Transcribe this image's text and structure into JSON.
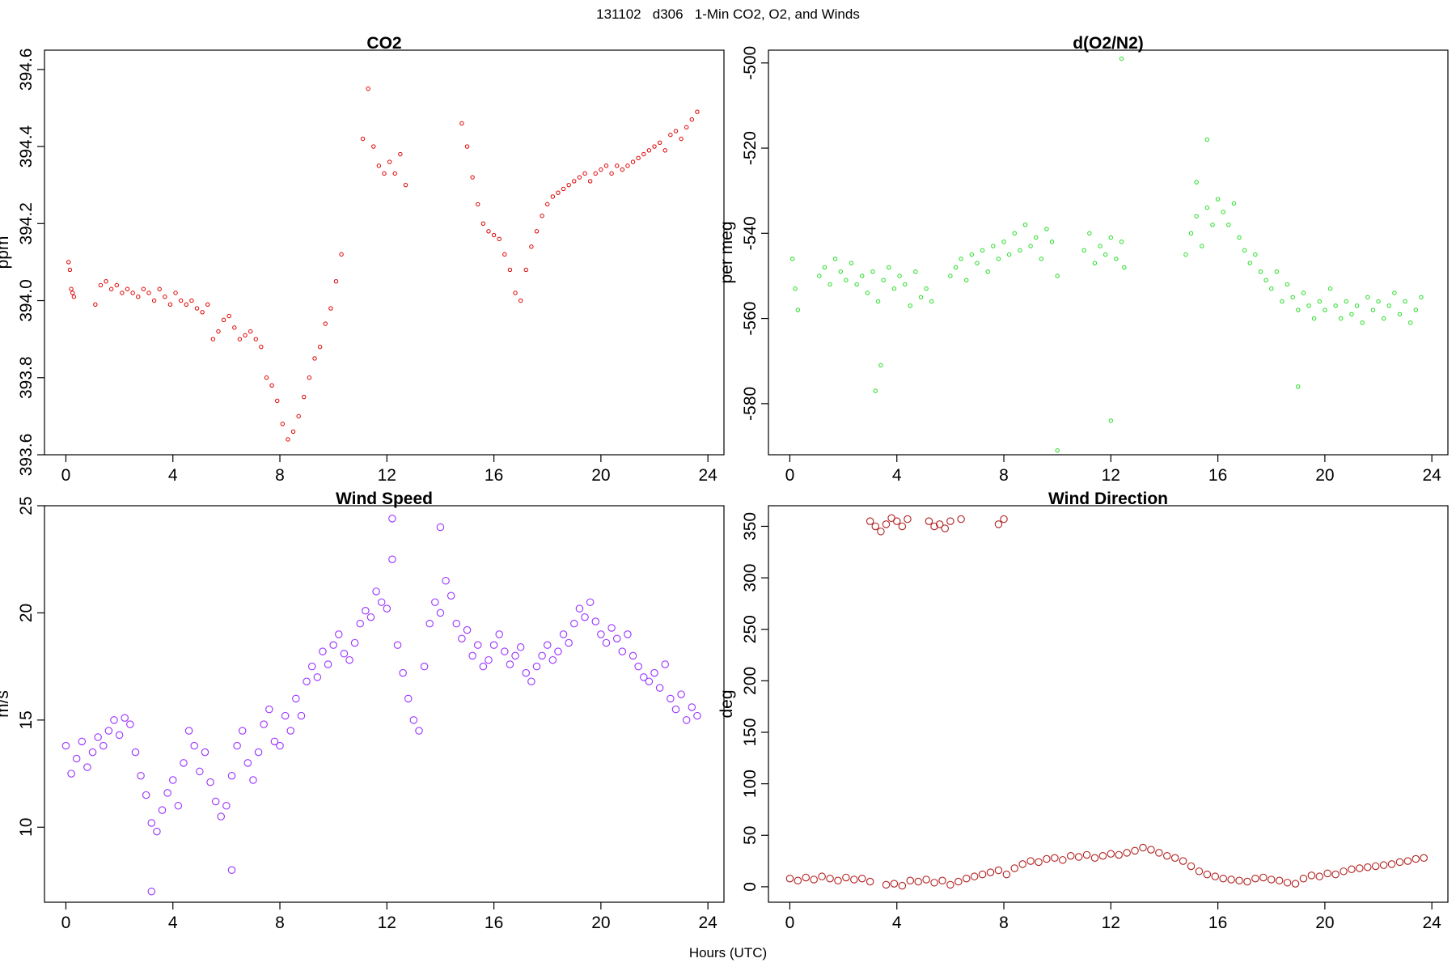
{
  "header": {
    "title": "131102   d306   1-Min CO2, O2, and Winds"
  },
  "shared_xlabel": "Hours (UTC)",
  "chart_data": [
    {
      "type": "scatter",
      "title": "CO2",
      "xlabel": "",
      "ylabel": "ppm",
      "color": "#e00000",
      "marker": "small-open-circle",
      "xlim": [
        -0.8,
        24.6
      ],
      "ylim": [
        393.6,
        394.65
      ],
      "xticks": [
        "0",
        "4",
        "8",
        "12",
        "16",
        "20",
        "24"
      ],
      "yticks": [
        "393.6",
        "393.8",
        "394.0",
        "394.2",
        "394.4",
        "394.6"
      ],
      "series": [
        {
          "x": [
            0.1,
            0.15,
            0.2,
            0.25,
            0.3,
            1.1,
            1.3,
            1.5,
            1.7,
            1.9,
            2.1,
            2.3,
            2.5,
            2.7,
            2.9,
            3.1,
            3.3,
            3.5,
            3.7,
            3.9,
            4.1,
            4.3,
            4.5,
            4.7,
            4.9,
            5.1,
            5.3,
            5.5,
            5.7,
            5.9,
            6.1,
            6.3,
            6.5,
            6.7,
            6.9,
            7.1,
            7.3,
            7.5,
            7.7,
            7.9,
            8.1,
            8.3,
            8.5,
            8.7,
            8.9,
            9.1,
            9.3,
            9.5,
            9.7,
            9.9,
            10.1,
            10.3,
            11.1,
            11.3,
            11.5,
            11.7,
            11.9,
            12.1,
            12.3,
            12.5,
            12.7,
            14.8,
            15.0,
            15.2,
            15.4,
            15.6,
            15.8,
            16.0,
            16.2,
            16.4,
            16.6,
            16.8,
            17.0,
            17.2,
            17.4,
            17.6,
            17.8,
            18.0,
            18.2,
            18.4,
            18.6,
            18.8,
            19.0,
            19.2,
            19.4,
            19.6,
            19.8,
            20.0,
            20.2,
            20.4,
            20.6,
            20.8,
            21.0,
            21.2,
            21.4,
            21.6,
            21.8,
            22.0,
            22.2,
            22.4,
            22.6,
            22.8,
            23.0,
            23.2,
            23.4,
            23.6
          ],
          "y": [
            394.1,
            394.08,
            394.03,
            394.02,
            394.01,
            393.99,
            394.04,
            394.05,
            394.03,
            394.04,
            394.02,
            394.03,
            394.02,
            394.01,
            394.03,
            394.02,
            394.0,
            394.03,
            394.01,
            393.99,
            394.02,
            394.0,
            393.99,
            394.0,
            393.98,
            393.97,
            393.99,
            393.9,
            393.92,
            393.95,
            393.96,
            393.93,
            393.9,
            393.91,
            393.92,
            393.9,
            393.88,
            393.8,
            393.78,
            393.74,
            393.68,
            393.64,
            393.66,
            393.7,
            393.75,
            393.8,
            393.85,
            393.88,
            393.94,
            393.98,
            394.05,
            394.12,
            394.42,
            394.55,
            394.4,
            394.35,
            394.33,
            394.36,
            394.33,
            394.38,
            394.3,
            394.46,
            394.4,
            394.32,
            394.25,
            394.2,
            394.18,
            394.17,
            394.16,
            394.12,
            394.08,
            394.02,
            394.0,
            394.08,
            394.14,
            394.18,
            394.22,
            394.25,
            394.27,
            394.28,
            394.29,
            394.3,
            394.31,
            394.32,
            394.33,
            394.31,
            394.33,
            394.34,
            394.35,
            394.33,
            394.35,
            394.34,
            394.35,
            394.36,
            394.37,
            394.38,
            394.39,
            394.4,
            394.41,
            394.39,
            394.43,
            394.44,
            394.42,
            394.45,
            394.47,
            394.49
          ]
        }
      ]
    },
    {
      "type": "scatter",
      "title": "d(O2/N2)",
      "xlabel": "",
      "ylabel": "per meg",
      "color": "#22dd22",
      "marker": "small-open-circle",
      "xlim": [
        -0.8,
        24.6
      ],
      "ylim": [
        -592,
        -497
      ],
      "xticks": [
        "0",
        "4",
        "8",
        "12",
        "16",
        "20",
        "24"
      ],
      "yticks": [
        "-580",
        "-560",
        "-540",
        "-520",
        "-500"
      ],
      "series": [
        {
          "x": [
            0.1,
            0.2,
            0.3,
            1.1,
            1.3,
            1.5,
            1.7,
            1.9,
            2.1,
            2.3,
            2.5,
            2.7,
            2.9,
            3.1,
            3.3,
            3.5,
            3.7,
            3.9,
            4.1,
            4.3,
            4.5,
            4.7,
            4.9,
            5.1,
            5.3,
            6.0,
            6.2,
            6.4,
            6.6,
            6.8,
            7.0,
            7.2,
            7.4,
            7.6,
            7.8,
            8.0,
            8.2,
            8.4,
            8.6,
            8.8,
            9.0,
            9.2,
            9.4,
            9.6,
            9.8,
            10.0,
            11.0,
            11.2,
            11.4,
            11.6,
            11.8,
            12.0,
            12.2,
            12.4,
            12.5,
            14.8,
            15.0,
            15.2,
            15.4,
            15.6,
            15.8,
            16.0,
            16.2,
            16.4,
            16.6,
            16.8,
            17.0,
            17.2,
            17.4,
            17.6,
            17.8,
            18.0,
            18.2,
            18.4,
            18.6,
            18.8,
            19.0,
            19.2,
            19.4,
            19.6,
            19.8,
            20.0,
            20.2,
            20.4,
            20.6,
            20.8,
            21.0,
            21.2,
            21.4,
            21.6,
            21.8,
            22.0,
            22.2,
            22.4,
            22.6,
            22.8,
            23.0,
            23.2,
            23.4,
            23.6,
            3.2,
            3.4,
            10.0,
            12.0,
            12.4,
            15.2,
            15.6,
            19.0
          ],
          "y": [
            -546,
            -553,
            -558,
            -550,
            -548,
            -552,
            -546,
            -549,
            -551,
            -547,
            -552,
            -550,
            -554,
            -549,
            -556,
            -551,
            -548,
            -553,
            -550,
            -552,
            -557,
            -549,
            -555,
            -553,
            -556,
            -550,
            -548,
            -546,
            -551,
            -545,
            -547,
            -544,
            -549,
            -543,
            -546,
            -542,
            -545,
            -540,
            -544,
            -538,
            -543,
            -541,
            -546,
            -539,
            -542,
            -550,
            -544,
            -540,
            -547,
            -543,
            -545,
            -541,
            -546,
            -542,
            -548,
            -545,
            -540,
            -536,
            -543,
            -534,
            -538,
            -532,
            -535,
            -538,
            -533,
            -541,
            -544,
            -547,
            -545,
            -549,
            -551,
            -553,
            -549,
            -556,
            -552,
            -555,
            -558,
            -554,
            -557,
            -560,
            -556,
            -558,
            -553,
            -557,
            -560,
            -556,
            -559,
            -557,
            -561,
            -555,
            -558,
            -556,
            -560,
            -557,
            -554,
            -559,
            -556,
            -561,
            -558,
            -555,
            -577,
            -571,
            -591,
            -584,
            -499,
            -528,
            -518,
            -576
          ]
        }
      ]
    },
    {
      "type": "scatter",
      "title": "Wind Speed",
      "xlabel": "",
      "ylabel": "m/s",
      "color": "#9933ff",
      "marker": "open-circle",
      "xlim": [
        -0.8,
        24.6
      ],
      "ylim": [
        6.5,
        25
      ],
      "xticks": [
        "0",
        "4",
        "8",
        "12",
        "16",
        "20",
        "24"
      ],
      "yticks": [
        "10",
        "15",
        "20",
        "25"
      ],
      "series": [
        {
          "x": [
            0.0,
            0.2,
            0.4,
            0.6,
            0.8,
            1.0,
            1.2,
            1.4,
            1.6,
            1.8,
            2.0,
            2.2,
            2.4,
            2.6,
            2.8,
            3.0,
            3.2,
            3.4,
            3.6,
            3.8,
            4.0,
            4.2,
            4.4,
            4.6,
            4.8,
            5.0,
            5.2,
            5.4,
            5.6,
            5.8,
            6.0,
            6.2,
            6.4,
            6.6,
            6.8,
            7.0,
            7.2,
            7.4,
            7.6,
            7.8,
            8.0,
            8.2,
            8.4,
            8.6,
            8.8,
            9.0,
            9.2,
            9.4,
            9.6,
            9.8,
            10.0,
            10.2,
            10.4,
            10.6,
            10.8,
            11.0,
            11.2,
            11.4,
            11.6,
            11.8,
            12.0,
            12.2,
            12.4,
            12.6,
            12.8,
            13.0,
            13.2,
            13.4,
            13.6,
            13.8,
            14.0,
            14.2,
            14.4,
            14.6,
            14.8,
            15.0,
            15.2,
            15.4,
            15.6,
            15.8,
            16.0,
            16.2,
            16.4,
            16.6,
            16.8,
            17.0,
            17.2,
            17.4,
            17.6,
            17.8,
            18.0,
            18.2,
            18.4,
            18.6,
            18.8,
            19.0,
            19.2,
            19.4,
            19.6,
            19.8,
            20.0,
            20.2,
            20.4,
            20.6,
            20.8,
            21.0,
            21.2,
            21.4,
            21.6,
            21.8,
            22.0,
            22.2,
            22.4,
            22.6,
            22.8,
            23.0,
            23.2,
            23.4,
            23.6,
            3.2,
            6.2,
            12.2,
            14.0
          ],
          "y": [
            13.8,
            12.5,
            13.2,
            14.0,
            12.8,
            13.5,
            14.2,
            13.8,
            14.5,
            15.0,
            14.3,
            15.1,
            14.8,
            13.5,
            12.4,
            11.5,
            10.2,
            9.8,
            10.8,
            11.6,
            12.2,
            11.0,
            13.0,
            14.5,
            13.8,
            12.6,
            13.5,
            12.1,
            11.2,
            10.5,
            11.0,
            12.4,
            13.8,
            14.5,
            13.0,
            12.2,
            13.5,
            14.8,
            15.5,
            14.0,
            13.8,
            15.2,
            14.5,
            16.0,
            15.2,
            16.8,
            17.5,
            17.0,
            18.2,
            17.6,
            18.5,
            19.0,
            18.1,
            17.8,
            18.6,
            19.5,
            20.1,
            19.8,
            21.0,
            20.5,
            20.2,
            22.5,
            18.5,
            17.2,
            16.0,
            15.0,
            14.5,
            17.5,
            19.5,
            20.5,
            20.0,
            21.5,
            20.8,
            19.5,
            18.8,
            19.2,
            18.0,
            18.5,
            17.5,
            17.8,
            18.5,
            19.0,
            18.2,
            17.6,
            18.0,
            18.4,
            17.2,
            16.8,
            17.5,
            18.0,
            18.5,
            17.8,
            18.2,
            19.0,
            18.6,
            19.5,
            20.2,
            19.8,
            20.5,
            19.6,
            19.0,
            18.6,
            19.3,
            18.8,
            18.2,
            19.0,
            18.0,
            17.5,
            17.0,
            16.8,
            17.2,
            16.5,
            17.6,
            16.0,
            15.5,
            16.2,
            15.0,
            15.6,
            15.2,
            7.0,
            8.0,
            24.4,
            24.0
          ]
        }
      ]
    },
    {
      "type": "scatter",
      "title": "Wind Direction",
      "xlabel": "",
      "ylabel": "deg",
      "color": "#b22222",
      "marker": "open-circle",
      "xlim": [
        -0.8,
        24.6
      ],
      "ylim": [
        -15,
        370
      ],
      "xticks": [
        "0",
        "4",
        "8",
        "12",
        "16",
        "20",
        "24"
      ],
      "yticks": [
        "0",
        "50",
        "100",
        "150",
        "200",
        "250",
        "300",
        "350"
      ],
      "series": [
        {
          "x": [
            0.0,
            0.3,
            0.6,
            0.9,
            1.2,
            1.5,
            1.8,
            2.1,
            2.4,
            2.7,
            3.0,
            3.6,
            3.9,
            4.2,
            4.5,
            4.8,
            5.1,
            5.4,
            5.7,
            6.0,
            6.3,
            6.6,
            6.9,
            7.2,
            7.5,
            7.8,
            8.1,
            8.4,
            8.7,
            9.0,
            9.3,
            9.6,
            9.9,
            10.2,
            10.5,
            10.8,
            11.1,
            11.4,
            11.7,
            12.0,
            12.3,
            12.6,
            12.9,
            13.2,
            13.5,
            13.8,
            14.1,
            14.4,
            14.7,
            15.0,
            15.3,
            15.6,
            15.9,
            16.2,
            16.5,
            16.8,
            17.1,
            17.4,
            17.7,
            18.0,
            18.3,
            18.6,
            18.9,
            19.2,
            19.5,
            19.8,
            20.1,
            20.4,
            20.7,
            21.0,
            21.3,
            21.6,
            21.9,
            22.2,
            22.5,
            22.8,
            23.1,
            23.4,
            23.7,
            3.0,
            3.2,
            3.4,
            3.6,
            3.8,
            4.0,
            4.2,
            4.4,
            5.2,
            5.4,
            5.6,
            5.8,
            6.0,
            6.4,
            7.8,
            8.0
          ],
          "y": [
            8,
            6,
            9,
            7,
            10,
            8,
            6,
            9,
            7,
            8,
            5,
            2,
            3,
            1,
            6,
            5,
            7,
            4,
            6,
            2,
            5,
            8,
            10,
            12,
            14,
            16,
            12,
            18,
            22,
            25,
            24,
            27,
            28,
            26,
            30,
            29,
            31,
            28,
            30,
            32,
            31,
            33,
            35,
            38,
            36,
            33,
            30,
            28,
            25,
            20,
            15,
            12,
            10,
            8,
            7,
            6,
            5,
            8,
            9,
            7,
            6,
            4,
            3,
            8,
            11,
            10,
            13,
            12,
            15,
            17,
            18,
            19,
            20,
            21,
            22,
            24,
            25,
            27,
            28,
            355,
            350,
            345,
            352,
            358,
            355,
            350,
            357,
            355,
            350,
            352,
            348,
            355,
            357,
            352,
            357
          ]
        }
      ]
    }
  ]
}
